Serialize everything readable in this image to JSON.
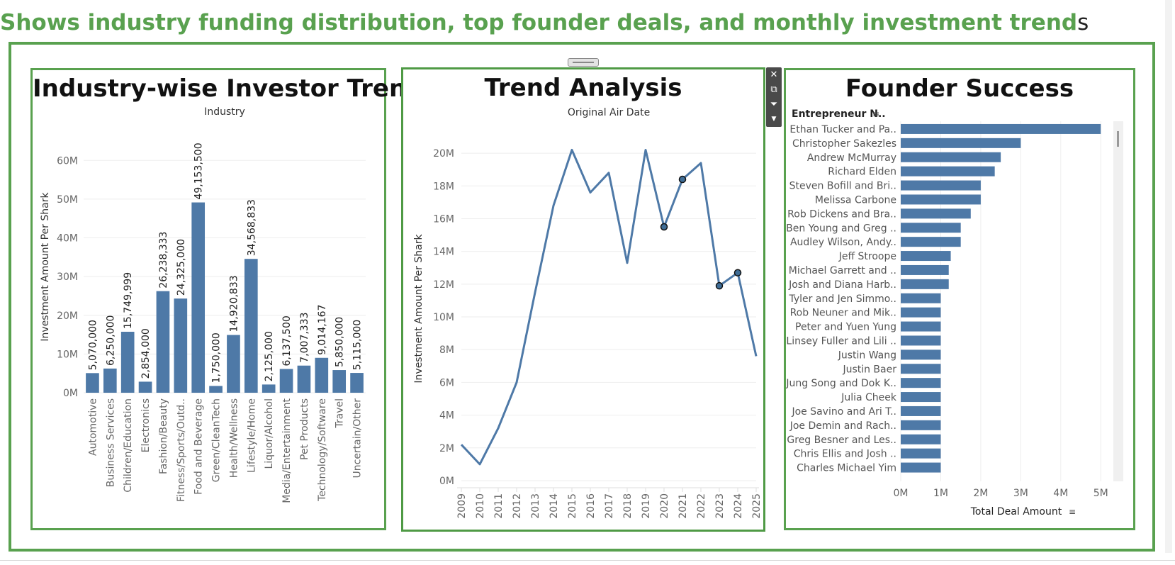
{
  "page": {
    "headline": "Shows industry funding distribution, top founder deals, and monthly investment trend",
    "headline_tail": "s"
  },
  "toolbar": {
    "close_icon": "close-icon",
    "popout_icon": "popout-icon",
    "filter_icon": "filter-icon",
    "menu_icon": "dropdown-arrow-icon"
  },
  "colors": {
    "bar": "#4e79a7",
    "line": "#4e79a7",
    "accent": "#59a14f"
  },
  "panels": {
    "industry": {
      "title": "Industry-wise Investor Trends"
    },
    "trend": {
      "title": "Trend Analysis"
    },
    "founder": {
      "title": "Founder Success"
    }
  },
  "chart_data": [
    {
      "type": "bar",
      "title": "Industry-wise Investor Trends",
      "top_label": "Industry",
      "ylabel": "Investment Amount Per Shark",
      "ylim": [
        0,
        65000000
      ],
      "yticks": [
        "0M",
        "10M",
        "20M",
        "30M",
        "40M",
        "50M",
        "60M"
      ],
      "categories": [
        "Automotive",
        "Business Services",
        "Children/Education",
        "Electronics",
        "Fashion/Beauty",
        "Fitness/Sports/Outd..",
        "Food and Beverage",
        "Green/CleanTech",
        "Health/Wellness",
        "Lifestyle/Home",
        "Liquor/Alcohol",
        "Media/Entertainment",
        "Pet Products",
        "Technology/Software",
        "Travel",
        "Uncertain/Other"
      ],
      "values": [
        5070000,
        6250000,
        15749999,
        2854000,
        26238333,
        24325000,
        49153500,
        1750000,
        14920833,
        34568833,
        2125000,
        6137500,
        7007333,
        9014167,
        5850000,
        5115000
      ],
      "labels": [
        "5,070,000",
        "6,250,000",
        "15,749,999",
        "2,854,000",
        "26,238,333",
        "24,325,000",
        "49,153,500",
        "1,750,000",
        "14,920,833",
        "34,568,833",
        "2,125,000",
        "6,137,500",
        "7,007,333",
        "9,014,167",
        "5,850,000",
        "5,115,000"
      ]
    },
    {
      "type": "line",
      "title": "Trend Analysis",
      "top_label": "Original Air Date",
      "ylabel": "Investment Amount Per Shark",
      "ylim": [
        0,
        21000000
      ],
      "yticks": [
        "0M",
        "2M",
        "4M",
        "6M",
        "8M",
        "10M",
        "12M",
        "14M",
        "16M",
        "18M",
        "20M"
      ],
      "x": [
        "2009",
        "2010",
        "2011",
        "2012",
        "2013",
        "2014",
        "2015",
        "2016",
        "2017",
        "2018",
        "2019",
        "2020",
        "2021",
        "2022",
        "2023",
        "2024",
        "2025"
      ],
      "values": [
        2200000,
        1000000,
        3200000,
        6000000,
        11500000,
        16800000,
        20200000,
        17600000,
        18800000,
        13300000,
        20200000,
        15500000,
        18400000,
        19400000,
        11900000,
        12700000,
        7600000
      ],
      "highlighted": [
        "2020",
        "2021",
        "2023",
        "2024"
      ]
    },
    {
      "type": "bar",
      "orientation": "horizontal",
      "title": "Founder Success",
      "row_header": "Entrepreneur N..",
      "xlabel": "Total Deal Amount",
      "xlim": [
        0,
        5200000
      ],
      "xticks": [
        "0M",
        "1M",
        "2M",
        "3M",
        "4M",
        "5M"
      ],
      "categories": [
        "Ethan Tucker and Pa..",
        "Christopher Sakezles",
        "Andrew McMurray",
        "Richard Elden",
        "Steven Bofill and Bri..",
        "Melissa Carbone",
        "Rob Dickens and Bra..",
        "Ben Young and Greg ..",
        "Audley Wilson, Andy..",
        "Jeff Stroope",
        "Michael Garrett and ..",
        "Josh and Diana Harb..",
        "Tyler and Jen Simmo..",
        "Rob Neuner and Mik..",
        "Peter and Yuen Yung",
        "Linsey Fuller and Lili ..",
        "Justin Wang",
        "Justin Baer",
        "Jung Song and Dok K..",
        "Julia Cheek",
        "Joe Savino and Ari T..",
        "Joe Demin and Rach..",
        "Greg Besner and Les..",
        "Chris Ellis and Josh ..",
        "Charles Michael Yim"
      ],
      "values": [
        5000000,
        3000000,
        2500000,
        2350000,
        2000000,
        2000000,
        1750000,
        1500000,
        1500000,
        1250000,
        1200000,
        1200000,
        1000000,
        1000000,
        1000000,
        1000000,
        1000000,
        1000000,
        1000000,
        1000000,
        1000000,
        1000000,
        1000000,
        1000000,
        1000000
      ]
    }
  ]
}
